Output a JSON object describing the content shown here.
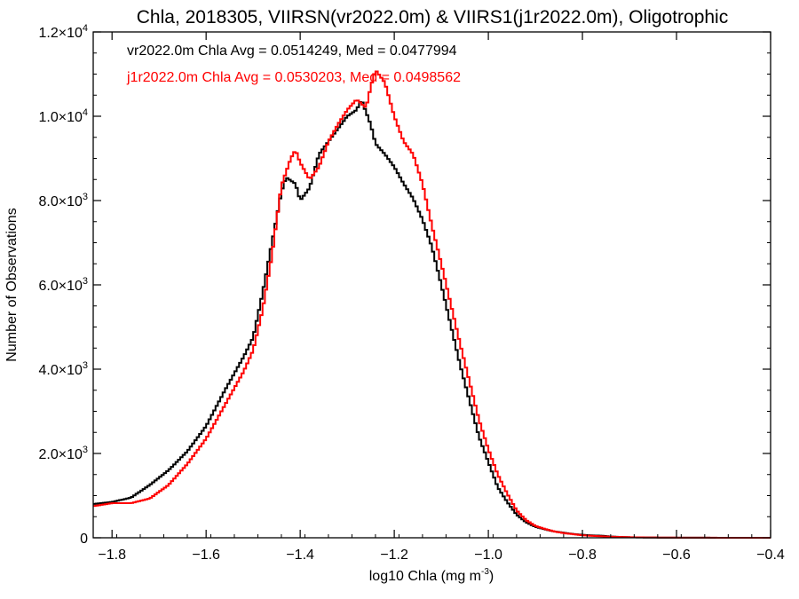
{
  "chart_data": {
    "type": "line",
    "title": "Chla, 2018305, VIIRSN(vr2022.0m) & VIIRS1(j1r2022.0m), Oligotrophic",
    "xlabel": "log10 Chla (mg m",
    "xlabel_sup": "-3",
    "xlabel_end": ")",
    "ylabel": "Number of Observations",
    "xlim": [
      -1.84,
      -0.4
    ],
    "ylim": [
      0,
      12000
    ],
    "xticks": [
      {
        "v": -1.8,
        "label": "−1.8"
      },
      {
        "v": -1.6,
        "label": "−1.6"
      },
      {
        "v": -1.4,
        "label": "−1.4"
      },
      {
        "v": -1.2,
        "label": "−1.2"
      },
      {
        "v": -1.0,
        "label": "−1.0"
      },
      {
        "v": -0.8,
        "label": "−0.8"
      },
      {
        "v": -0.6,
        "label": "−0.6"
      },
      {
        "v": -0.4,
        "label": "−0.4"
      }
    ],
    "yticks": [
      {
        "v": 0,
        "label": "0",
        "exp": ""
      },
      {
        "v": 2000,
        "label": "2.0×10",
        "exp": "3"
      },
      {
        "v": 4000,
        "label": "4.0×10",
        "exp": "3"
      },
      {
        "v": 6000,
        "label": "6.0×10",
        "exp": "3"
      },
      {
        "v": 8000,
        "label": "8.0×10",
        "exp": "3"
      },
      {
        "v": 10000,
        "label": "1.0×10",
        "exp": "4"
      },
      {
        "v": 12000,
        "label": "1.2×10",
        "exp": "4"
      }
    ],
    "annotations": [
      {
        "text": "vr2022.0m Chla Avg = 0.0514249, Med = 0.0477994",
        "color": "#000000"
      },
      {
        "text": "j1r2022.0m Chla Avg = 0.0530203, Med = 0.0498562",
        "color": "#ff0000"
      }
    ],
    "series": [
      {
        "color": "#000000",
        "points": [
          [
            -1.84,
            800
          ],
          [
            -1.8,
            850
          ],
          [
            -1.76,
            950
          ],
          [
            -1.72,
            1250
          ],
          [
            -1.68,
            1600
          ],
          [
            -1.64,
            2050
          ],
          [
            -1.6,
            2650
          ],
          [
            -1.56,
            3500
          ],
          [
            -1.52,
            4300
          ],
          [
            -1.5,
            4750
          ],
          [
            -1.48,
            5800
          ],
          [
            -1.46,
            7000
          ],
          [
            -1.44,
            8200
          ],
          [
            -1.43,
            8550
          ],
          [
            -1.41,
            8400
          ],
          [
            -1.4,
            8000
          ],
          [
            -1.38,
            8300
          ],
          [
            -1.36,
            9100
          ],
          [
            -1.34,
            9400
          ],
          [
            -1.32,
            9700
          ],
          [
            -1.3,
            10000
          ],
          [
            -1.28,
            10150
          ],
          [
            -1.27,
            10400
          ],
          [
            -1.25,
            9800
          ],
          [
            -1.24,
            9350
          ],
          [
            -1.22,
            9100
          ],
          [
            -1.2,
            8800
          ],
          [
            -1.18,
            8400
          ],
          [
            -1.16,
            8050
          ],
          [
            -1.14,
            7550
          ],
          [
            -1.12,
            6900
          ],
          [
            -1.1,
            6000
          ],
          [
            -1.08,
            5050
          ],
          [
            -1.06,
            4100
          ],
          [
            -1.04,
            3250
          ],
          [
            -1.02,
            2400
          ],
          [
            -1.0,
            1800
          ],
          [
            -0.98,
            1200
          ],
          [
            -0.96,
            850
          ],
          [
            -0.94,
            550
          ],
          [
            -0.92,
            370
          ],
          [
            -0.9,
            260
          ],
          [
            -0.88,
            200
          ],
          [
            -0.86,
            150
          ],
          [
            -0.84,
            120
          ],
          [
            -0.82,
            90
          ],
          [
            -0.8,
            70
          ],
          [
            -0.78,
            55
          ],
          [
            -0.76,
            50
          ],
          [
            -0.74,
            30
          ],
          [
            -0.72,
            20
          ],
          [
            -0.7,
            12
          ],
          [
            -0.68,
            8
          ],
          [
            -0.66,
            5
          ],
          [
            -0.62,
            3
          ],
          [
            -0.58,
            2
          ],
          [
            -0.5,
            1
          ],
          [
            -0.4,
            0
          ]
        ]
      },
      {
        "color": "#ff0000",
        "points": [
          [
            -1.84,
            750
          ],
          [
            -1.8,
            820
          ],
          [
            -1.76,
            820
          ],
          [
            -1.72,
            930
          ],
          [
            -1.68,
            1250
          ],
          [
            -1.64,
            1750
          ],
          [
            -1.6,
            2350
          ],
          [
            -1.56,
            3150
          ],
          [
            -1.52,
            3950
          ],
          [
            -1.5,
            4450
          ],
          [
            -1.48,
            5400
          ],
          [
            -1.46,
            6700
          ],
          [
            -1.44,
            8350
          ],
          [
            -1.42,
            9000
          ],
          [
            -1.41,
            9200
          ],
          [
            -1.4,
            8900
          ],
          [
            -1.38,
            8500
          ],
          [
            -1.36,
            8800
          ],
          [
            -1.34,
            9400
          ],
          [
            -1.32,
            9800
          ],
          [
            -1.3,
            10150
          ],
          [
            -1.28,
            10400
          ],
          [
            -1.26,
            10200
          ],
          [
            -1.25,
            10700
          ],
          [
            -1.24,
            11100
          ],
          [
            -1.22,
            10800
          ],
          [
            -1.2,
            10000
          ],
          [
            -1.18,
            9400
          ],
          [
            -1.16,
            9100
          ],
          [
            -1.14,
            8400
          ],
          [
            -1.12,
            7400
          ],
          [
            -1.1,
            6500
          ],
          [
            -1.08,
            5550
          ],
          [
            -1.06,
            4600
          ],
          [
            -1.04,
            3700
          ],
          [
            -1.02,
            2800
          ],
          [
            -1.0,
            2100
          ],
          [
            -0.98,
            1500
          ],
          [
            -0.96,
            1050
          ],
          [
            -0.94,
            650
          ],
          [
            -0.92,
            420
          ],
          [
            -0.9,
            280
          ],
          [
            -0.88,
            210
          ],
          [
            -0.86,
            150
          ],
          [
            -0.84,
            110
          ],
          [
            -0.82,
            85
          ],
          [
            -0.8,
            60
          ],
          [
            -0.78,
            45
          ],
          [
            -0.76,
            35
          ],
          [
            -0.74,
            25
          ],
          [
            -0.72,
            20
          ],
          [
            -0.7,
            14
          ],
          [
            -0.68,
            10
          ],
          [
            -0.66,
            8
          ],
          [
            -0.62,
            5
          ],
          [
            -0.58,
            3
          ],
          [
            -0.5,
            1
          ],
          [
            -0.4,
            0
          ]
        ]
      }
    ]
  }
}
